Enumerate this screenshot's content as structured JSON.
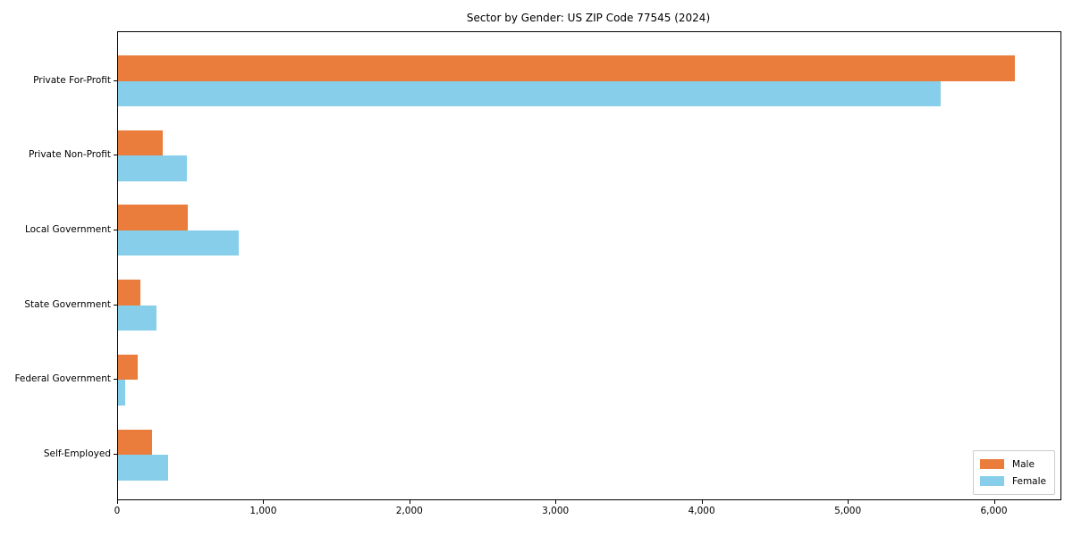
{
  "title": "Sector by Gender: US ZIP Code 77545 (2024)",
  "colors": {
    "male": "#EB7D3C",
    "female": "#87CEEB",
    "axis": "#000000",
    "legend_border": "#CCCCCC",
    "background": "#FFFFFF"
  },
  "legend": {
    "position": "lower right",
    "male_label": "Male",
    "female_label": "Female"
  },
  "chart_data": {
    "type": "bar",
    "orientation": "horizontal",
    "title": "Sector by Gender: US ZIP Code 77545 (2024)",
    "categories": [
      "Private For-Profit",
      "Private Non-Profit",
      "Local Government",
      "State Government",
      "Federal Government",
      "Self-Employed"
    ],
    "series": [
      {
        "name": "Male",
        "color": "#EB7D3C",
        "values": [
          6140,
          305,
          475,
          155,
          135,
          235
        ]
      },
      {
        "name": "Female",
        "color": "#87CEEB",
        "values": [
          5630,
          470,
          825,
          265,
          50,
          340
        ]
      }
    ],
    "xlabel": "",
    "ylabel": "",
    "xlim": [
      0,
      6450
    ],
    "xticks": [
      0,
      1000,
      2000,
      3000,
      4000,
      5000,
      6000
    ],
    "xtick_labels": [
      "0",
      "1,000",
      "2,000",
      "3,000",
      "4,000",
      "5,000",
      "6,000"
    ],
    "grid": false,
    "legend_position": "lower right"
  }
}
